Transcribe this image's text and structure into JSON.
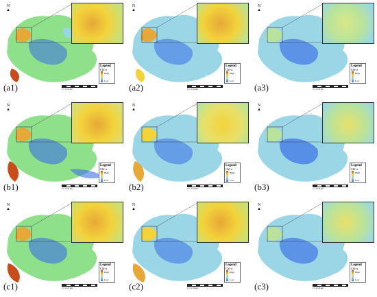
{
  "panels": [
    {
      "id": "a1",
      "label": "(a1)",
      "legend_title": "Legend",
      "legend_var": "Chl-a",
      "legend_high": "High",
      "legend_low": "Low",
      "north": "N",
      "scale": "0 5 10 20 km",
      "palette": "warm"
    },
    {
      "id": "a2",
      "label": "(a2)",
      "legend_title": "Legend",
      "legend_var": "Chl-a",
      "legend_high": "High",
      "legend_low": "Low",
      "north": "N",
      "scale": "0 5 10 20 km",
      "palette": "warm"
    },
    {
      "id": "a3",
      "label": "(a3)",
      "legend_title": "Legend",
      "legend_var": "Chl-a",
      "legend_high": "High",
      "legend_low": "Low",
      "north": "N",
      "scale": "0 5 10 20 km",
      "palette": "cool"
    },
    {
      "id": "b1",
      "label": "(b1)",
      "legend_title": "Legend",
      "legend_var": "Chl-a",
      "legend_high": "High",
      "legend_low": "Low",
      "north": "N",
      "scale": "0 5 10 20 km",
      "palette": "warm"
    },
    {
      "id": "b2",
      "label": "(b2)",
      "legend_title": "Legend",
      "legend_var": "Chl-a",
      "legend_high": "High",
      "legend_low": "Low",
      "north": "N",
      "scale": "0 5 10 20 km",
      "palette": "warm"
    },
    {
      "id": "b3",
      "label": "(b3)",
      "legend_title": "Legend",
      "legend_var": "Chl-a",
      "legend_high": "High",
      "legend_low": "Low",
      "north": "N",
      "scale": "0 5 10 20 km",
      "palette": "cool"
    },
    {
      "id": "c1",
      "label": "(c1)",
      "legend_title": "Legend",
      "legend_var": "Chl-a",
      "legend_high": "High",
      "legend_low": "Low",
      "north": "N",
      "scale": "0 5 10 20 km",
      "palette": "warm"
    },
    {
      "id": "c2",
      "label": "(c2)",
      "legend_title": "Legend",
      "legend_var": "Chl-a",
      "legend_high": "High",
      "legend_low": "Low",
      "north": "N",
      "scale": "0 5 10 20 km",
      "palette": "warm"
    },
    {
      "id": "c3",
      "label": "(c3)",
      "legend_title": "Legend",
      "legend_var": "Chl-a",
      "legend_high": "High",
      "legend_low": "Low",
      "north": "N",
      "scale": "0 5 10 20 km",
      "palette": "cool"
    }
  ],
  "colors": {
    "high": "#c84d1a",
    "mid_high": "#f3d33a",
    "mid": "#8fe08a",
    "mid_low": "#9ad6e6",
    "low": "#3a6fe6",
    "inset_warm": "#e6a838",
    "inset_cool": "#b9e39a"
  }
}
